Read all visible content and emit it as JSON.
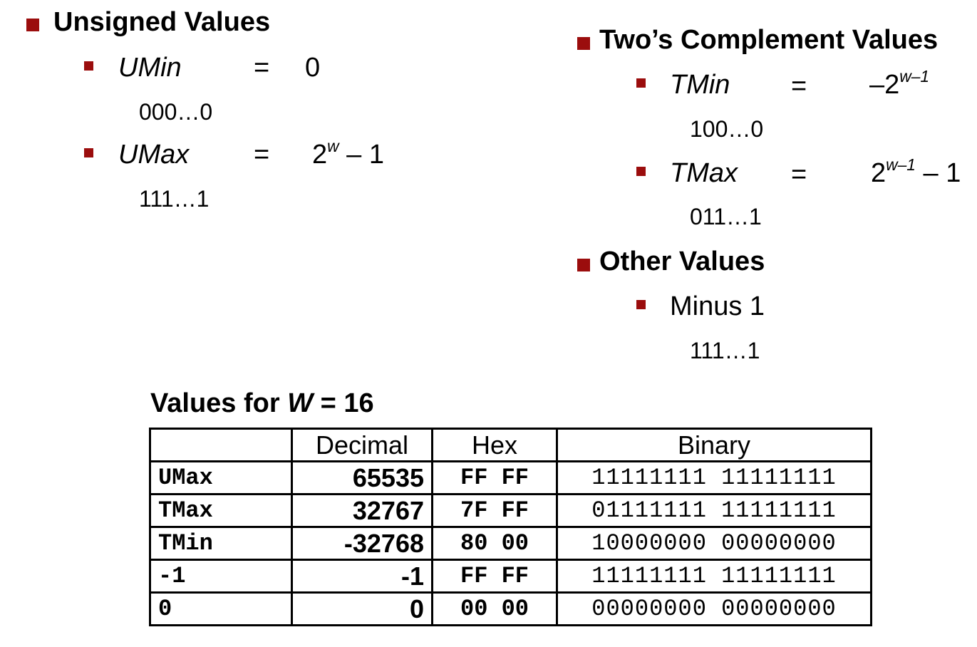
{
  "unsigned": {
    "heading": "Unsigned Values",
    "items": [
      {
        "name": "UMin",
        "eq": "=",
        "value": "0",
        "bits": "000…0"
      },
      {
        "name": "UMax",
        "eq": "=",
        "value_base": "2",
        "value_exp": "w",
        "value_tail": " – 1",
        "bits": "111…1"
      }
    ]
  },
  "twos": {
    "heading": "Two’s Complement Values",
    "items": [
      {
        "name": "TMin",
        "eq": "=",
        "value_base": "–2",
        "value_exp": "w–1",
        "bits": "100…0"
      },
      {
        "name": "TMax",
        "eq": "=",
        "value_base": "2",
        "value_exp": "w–1",
        "value_tail": " – 1",
        "bits": "011…1"
      }
    ]
  },
  "other": {
    "heading": "Other Values",
    "items": [
      {
        "name": "Minus 1",
        "bits": "111…1"
      }
    ]
  },
  "table": {
    "caption_prefix": "Values for ",
    "caption_var": "W",
    "caption_suffix": " = 16",
    "headers": [
      "",
      "Decimal",
      "Hex",
      "Binary"
    ],
    "rows": [
      {
        "label": "UMax",
        "decimal": "65535",
        "hex": "FF FF",
        "binary": "11111111 11111111"
      },
      {
        "label": "TMax",
        "decimal": "32767",
        "hex": "7F FF",
        "binary": "01111111 11111111"
      },
      {
        "label": "TMin",
        "decimal": "-32768",
        "hex": "80 00",
        "binary": "10000000 00000000"
      },
      {
        "label": "-1",
        "decimal": "-1",
        "hex": "FF FF",
        "binary": "11111111 11111111"
      },
      {
        "label": "0",
        "decimal": "0",
        "hex": "00 00",
        "binary": "00000000 00000000"
      }
    ]
  }
}
